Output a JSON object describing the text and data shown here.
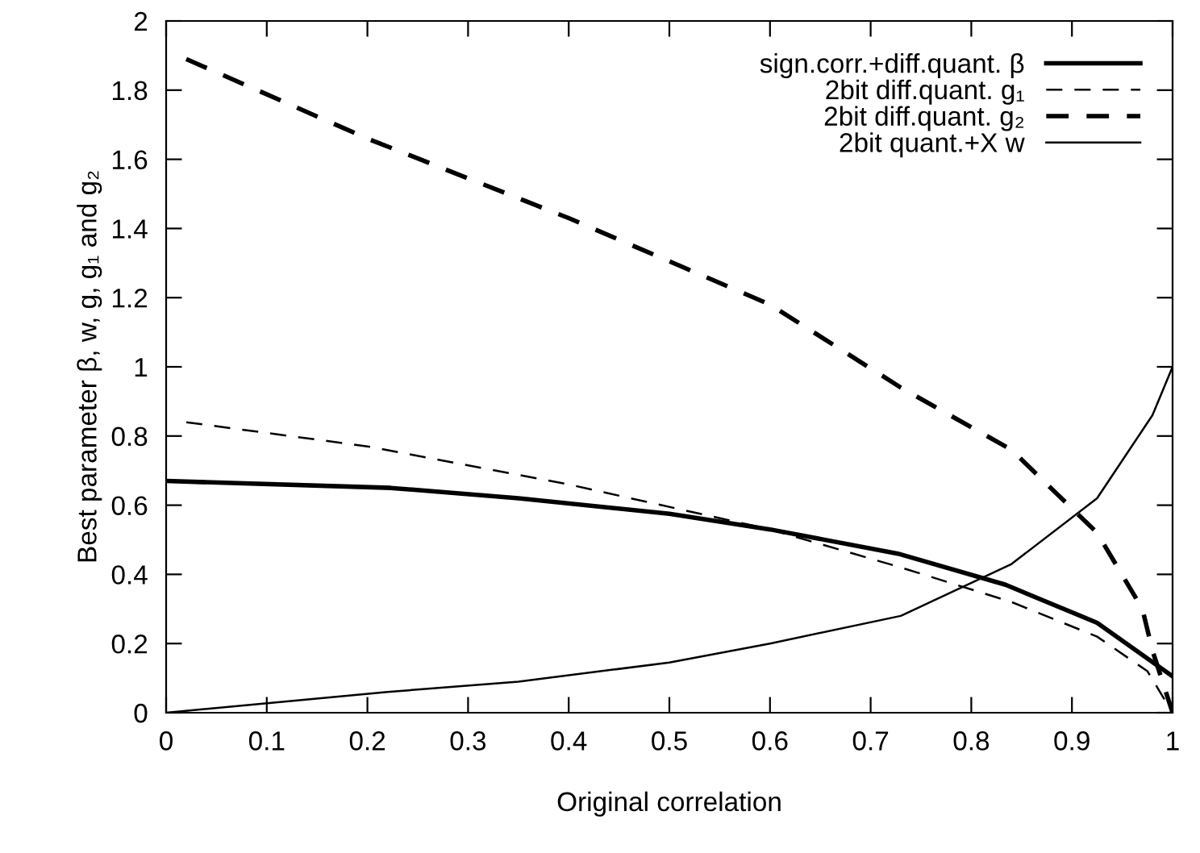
{
  "chart_data": {
    "type": "line",
    "xlabel": "Original correlation",
    "ylabel": "Best parameter β, w, g, g₁ and g₂",
    "xlim": [
      0,
      1
    ],
    "ylim": [
      0,
      2
    ],
    "xticks": [
      0,
      0.1,
      0.2,
      0.3,
      0.4,
      0.5,
      0.6,
      0.7,
      0.8,
      0.9,
      1
    ],
    "yticks": [
      0,
      0.2,
      0.4,
      0.6,
      0.8,
      1,
      1.2,
      1.4,
      1.6,
      1.8,
      2
    ],
    "grid": false,
    "legend": "top right",
    "marker": "none",
    "series": [
      {
        "name": "sign.corr.+diff.quant. β",
        "color": "#000000",
        "line_style": "solid",
        "x": [
          0,
          0.223,
          0.35,
          0.5,
          0.6,
          0.727,
          0.834,
          0.925,
          1
        ],
        "values": [
          0.67,
          0.65,
          0.62,
          0.575,
          0.53,
          0.46,
          0.37,
          0.26,
          0.105
        ]
      },
      {
        "name": "2bit diff.quant. g₁",
        "color": "#000000",
        "line_style": "dashed",
        "x": [
          0.02,
          0.2,
          0.4,
          0.6,
          0.73,
          0.84,
          0.925,
          0.975,
          1
        ],
        "values": [
          0.84,
          0.77,
          0.66,
          0.53,
          0.42,
          0.32,
          0.22,
          0.12,
          0
        ]
      },
      {
        "name": "2bit diff.quant. g₂",
        "color": "#000000",
        "line_style": "dashed",
        "x": [
          0.02,
          0.2,
          0.4,
          0.6,
          0.73,
          0.84,
          0.925,
          0.97,
          0.98,
          1
        ],
        "values": [
          1.89,
          1.66,
          1.43,
          1.18,
          0.94,
          0.76,
          0.52,
          0.3,
          0.18,
          0
        ]
      },
      {
        "name": "2bit quant.+X w",
        "color": "#000000",
        "line_style": "solid",
        "x": [
          0,
          0.22,
          0.35,
          0.5,
          0.6,
          0.73,
          0.84,
          0.925,
          0.98,
          1
        ],
        "values": [
          0,
          0.06,
          0.09,
          0.145,
          0.2,
          0.28,
          0.43,
          0.62,
          0.86,
          1.0
        ]
      }
    ]
  }
}
